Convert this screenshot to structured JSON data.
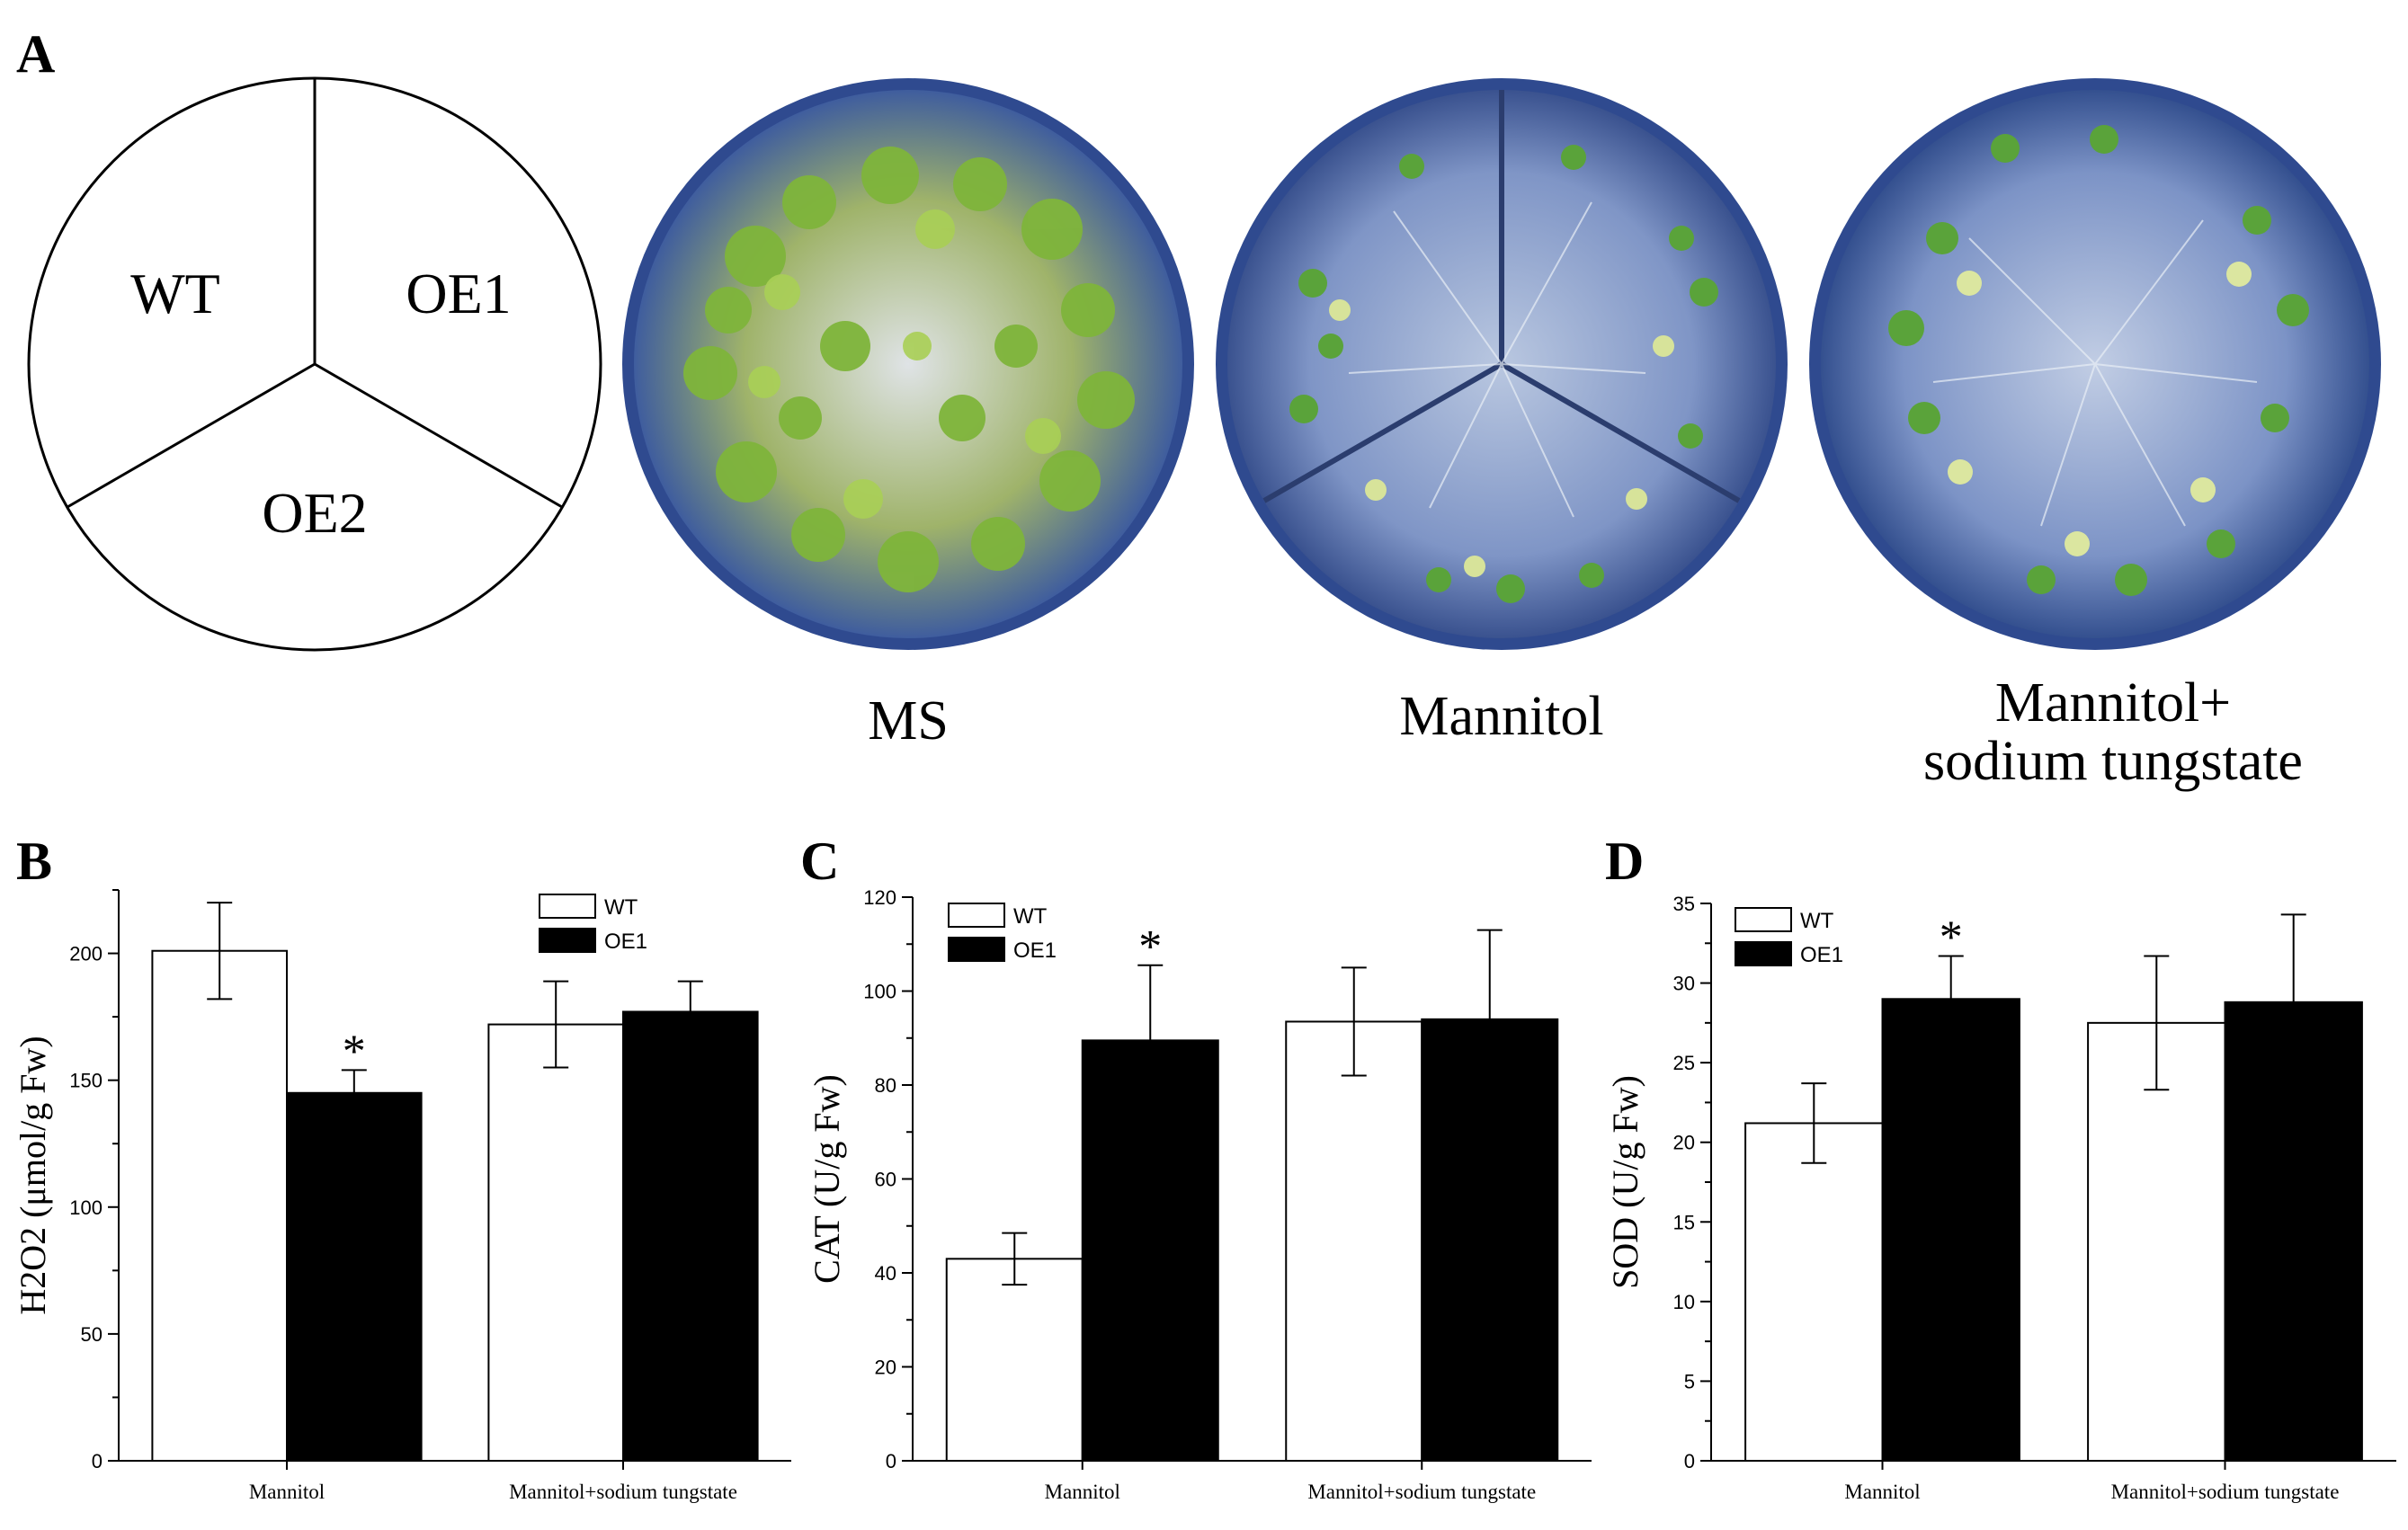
{
  "panel_a": {
    "label": "A",
    "diagram": {
      "sectors": [
        "WT",
        "OE1",
        "OE2"
      ]
    },
    "plates": [
      {
        "caption": "MS"
      },
      {
        "caption": "Mannitol"
      },
      {
        "caption_line1": "Mannitol+",
        "caption_line2": "sodium tungstate"
      }
    ]
  },
  "chart_data": [
    {
      "panel": "B",
      "type": "bar",
      "categories": [
        "Mannitol",
        "Mannitol+sodium tungstate"
      ],
      "series": [
        {
          "name": "WT",
          "values": [
            201,
            172
          ],
          "errors": [
            19,
            17
          ],
          "color": "#ffffff"
        },
        {
          "name": "OE1",
          "values": [
            145,
            177
          ],
          "errors": [
            9,
            12
          ],
          "color": "#000000"
        }
      ],
      "ylabel": "H2O2 (μmol/g Fw)",
      "ylim": [
        0,
        225
      ],
      "yticks": [
        0,
        50,
        100,
        150,
        200
      ],
      "significance": [
        {
          "category": 0,
          "series": "OE1",
          "mark": "*"
        }
      ],
      "legend": "top-right"
    },
    {
      "panel": "C",
      "type": "bar",
      "categories": [
        "Mannitol",
        "Mannitol+sodium tungstate"
      ],
      "series": [
        {
          "name": "WT",
          "values": [
            43,
            93.5
          ],
          "errors": [
            5.5,
            11.5
          ],
          "color": "#ffffff"
        },
        {
          "name": "OE1",
          "values": [
            89.5,
            94
          ],
          "errors": [
            16,
            19
          ],
          "color": "#000000"
        }
      ],
      "ylabel": "CAT (U/g Fw)",
      "ylim": [
        0,
        120
      ],
      "yticks": [
        0,
        20,
        40,
        60,
        80,
        100,
        120
      ],
      "significance": [
        {
          "category": 0,
          "series": "OE1",
          "mark": "*"
        }
      ],
      "legend": "top-left"
    },
    {
      "panel": "D",
      "type": "bar",
      "categories": [
        "Mannitol",
        "Mannitol+sodium tungstate"
      ],
      "series": [
        {
          "name": "WT",
          "values": [
            21.2,
            27.5
          ],
          "errors": [
            2.5,
            4.2
          ],
          "color": "#ffffff"
        },
        {
          "name": "OE1",
          "values": [
            29,
            28.8
          ],
          "errors": [
            2.7,
            5.5
          ],
          "color": "#000000"
        }
      ],
      "ylabel": "SOD (U/g Fw)",
      "ylim": [
        0,
        35
      ],
      "yticks": [
        0,
        5,
        10,
        15,
        20,
        25,
        30,
        35
      ],
      "significance": [
        {
          "category": 0,
          "series": "OE1",
          "mark": "*"
        }
      ],
      "legend": "top-left"
    }
  ]
}
